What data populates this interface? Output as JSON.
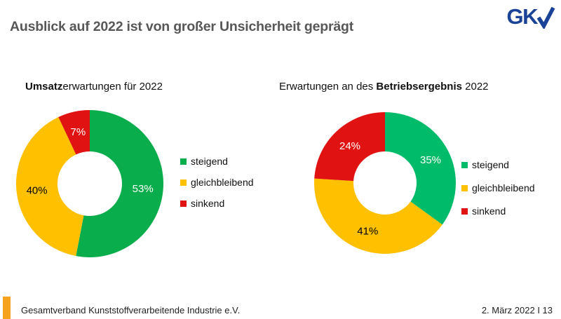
{
  "header": {
    "title": "Ausblick auf 2022 ist von großer Unsicherheit geprägt",
    "logo_text": "GK",
    "logo_color": "#1a4296"
  },
  "chart_data": [
    {
      "type": "donut",
      "title_full": "Umsatzerwartungen für 2022",
      "title_prefix": "",
      "title_bold": "Umsatz",
      "title_suffix": "erwartungen für 2022",
      "categories": [
        "steigend",
        "gleichbleibend",
        "sinkend"
      ],
      "values": [
        53,
        40,
        7
      ],
      "unit": "%",
      "labels": [
        "53%",
        "40%",
        "7%"
      ],
      "colors": [
        "#0aad4b",
        "#ffc000",
        "#e01212"
      ],
      "label_colors": [
        "#ffffff",
        "#000000",
        "#ffffff"
      ],
      "start_angle": "top",
      "direction": "clockwise",
      "legend_position": "right"
    },
    {
      "type": "donut",
      "title_full": "Erwartungen an des Betriebsergebnis 2022",
      "title_prefix": "Erwartungen an des ",
      "title_bold": "Betriebsergebnis",
      "title_suffix": " 2022",
      "categories": [
        "steigend",
        "gleichbleibend",
        "sinkend"
      ],
      "values": [
        35,
        41,
        24
      ],
      "unit": "%",
      "labels": [
        "35%",
        "41%",
        "24%"
      ],
      "colors": [
        "#00bc6a",
        "#ffc000",
        "#e01212"
      ],
      "label_colors": [
        "#ffffff",
        "#000000",
        "#ffffff"
      ],
      "start_angle": "top",
      "direction": "clockwise",
      "legend_position": "right"
    }
  ],
  "footer": {
    "org": "Gesamtverband Kunststoffverarbeitende Industrie e.V.",
    "date_page": "2. März 2022 I 13",
    "accent_color": "#f7a21e"
  }
}
